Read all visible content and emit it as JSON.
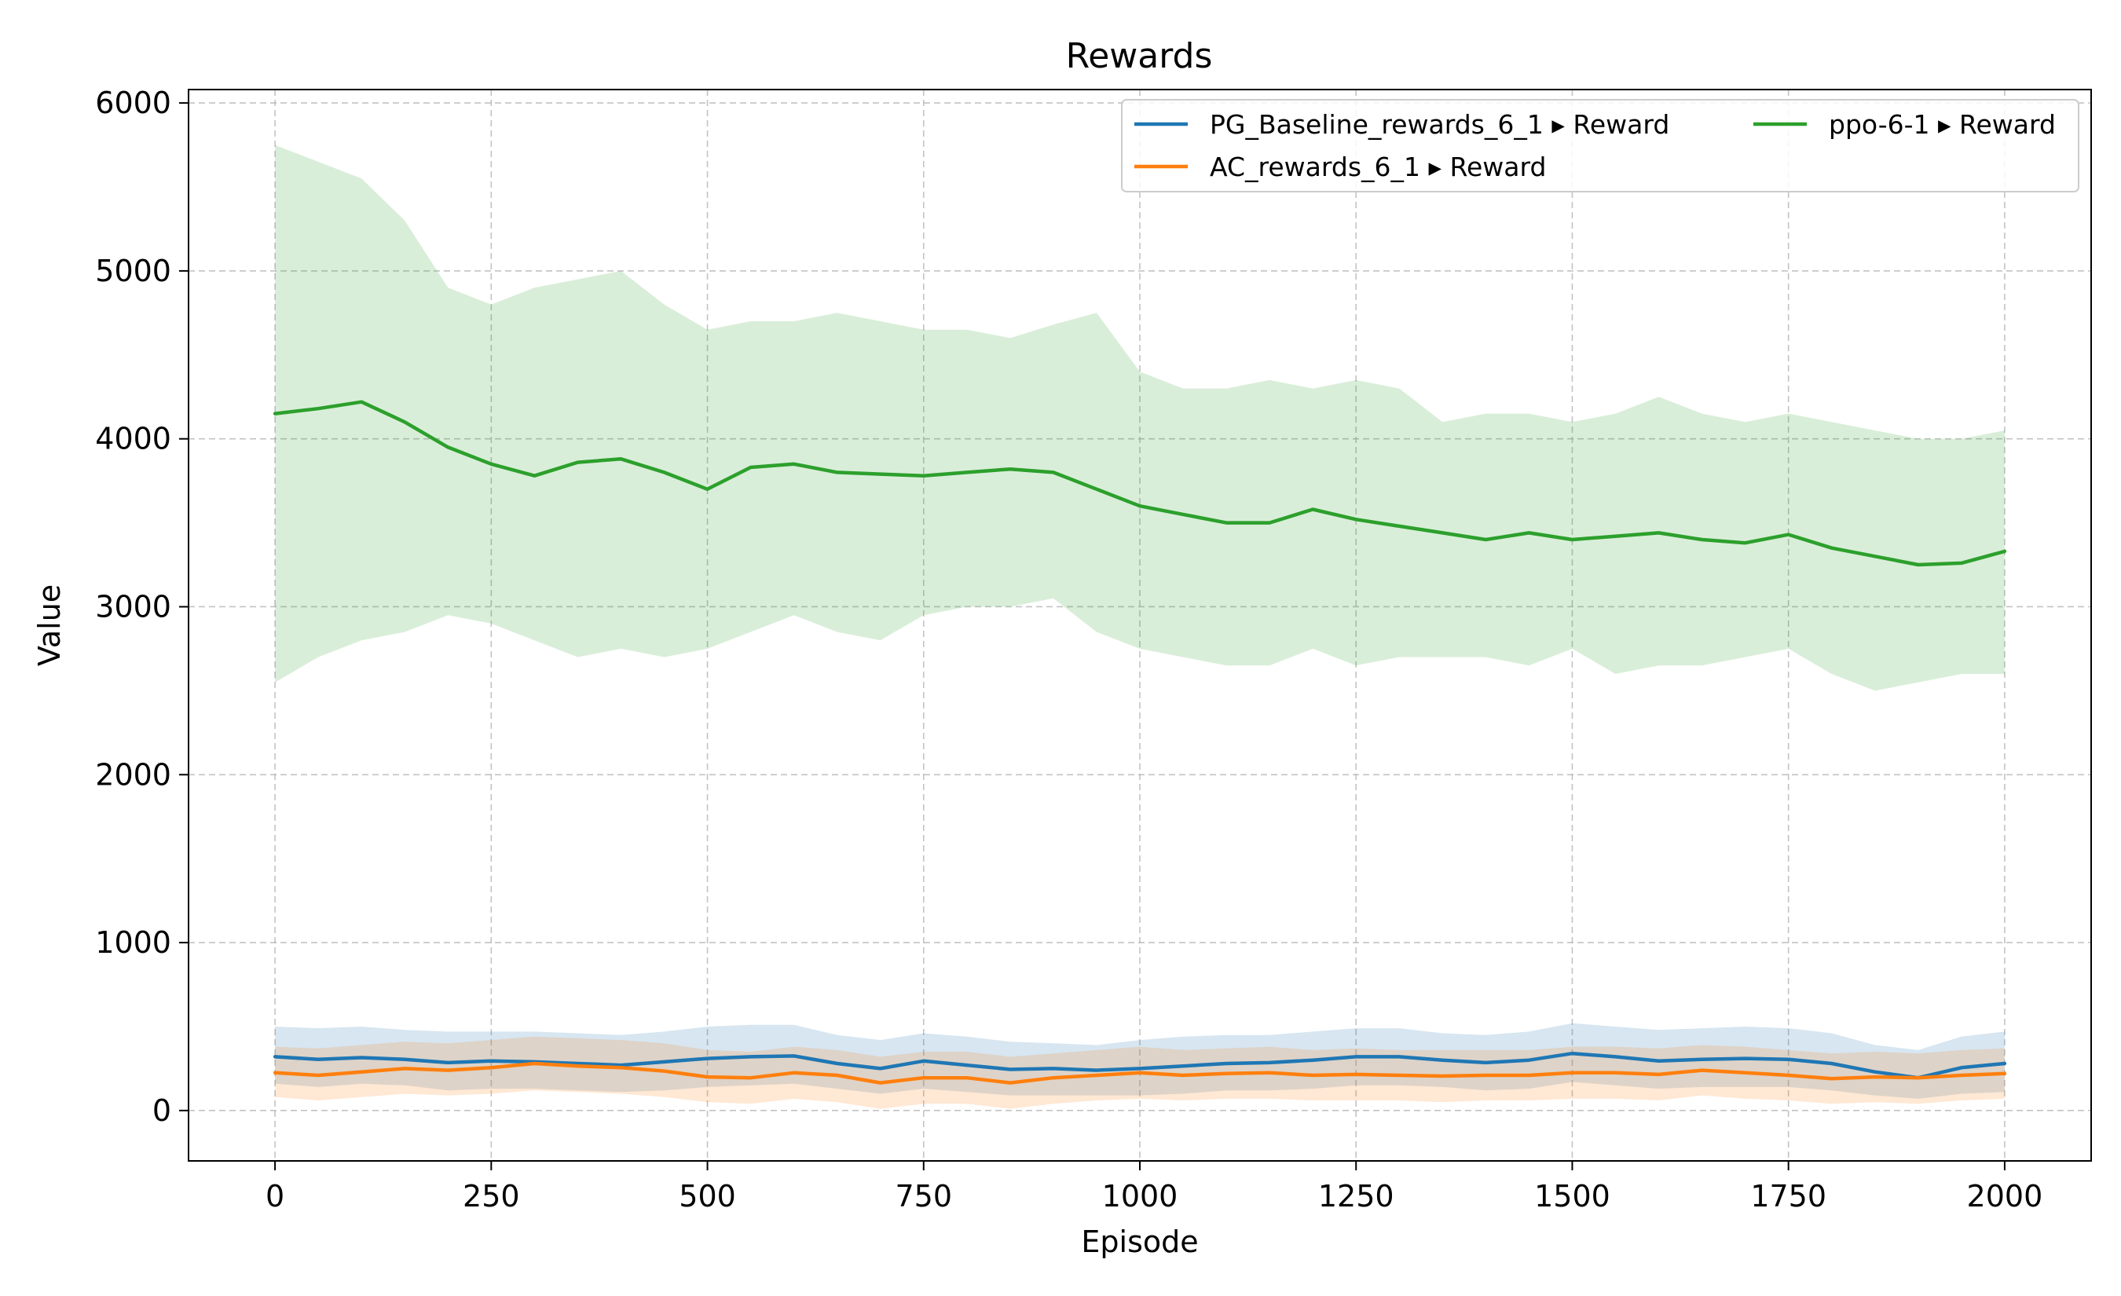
{
  "colors": {
    "pg": "#1f77b4",
    "ac": "#ff7f0e",
    "ppo": "#2ca02c"
  },
  "chart_data": {
    "type": "line",
    "title": "Rewards",
    "xlabel": "Episode",
    "ylabel": "Value",
    "xlim": [
      -100,
      2100
    ],
    "ylim": [
      -300,
      6080
    ],
    "xticks": [
      0,
      250,
      500,
      750,
      1000,
      1250,
      1500,
      1750,
      2000
    ],
    "yticks": [
      0,
      1000,
      2000,
      3000,
      4000,
      5000,
      6000
    ],
    "grid": true,
    "legend": {
      "placement": "top-right",
      "columns": 2
    },
    "series": [
      {
        "name": "PG_Baseline_rewards_6_1 ▸ Reward",
        "color_key": "pg",
        "x": [
          0,
          50,
          100,
          150,
          200,
          250,
          300,
          350,
          400,
          450,
          500,
          550,
          600,
          650,
          700,
          750,
          800,
          850,
          900,
          950,
          1000,
          1050,
          1100,
          1150,
          1200,
          1250,
          1300,
          1350,
          1400,
          1450,
          1500,
          1550,
          1600,
          1650,
          1700,
          1750,
          1800,
          1850,
          1900,
          1950,
          2000
        ],
        "mean": [
          320,
          305,
          315,
          305,
          285,
          295,
          290,
          280,
          270,
          290,
          310,
          320,
          325,
          280,
          250,
          295,
          270,
          245,
          250,
          240,
          250,
          265,
          280,
          285,
          300,
          320,
          320,
          300,
          285,
          300,
          340,
          320,
          295,
          305,
          310,
          305,
          280,
          230,
          195,
          255,
          280
        ],
        "upper": [
          500,
          490,
          500,
          480,
          470,
          470,
          470,
          460,
          450,
          470,
          500,
          510,
          510,
          450,
          420,
          460,
          440,
          410,
          400,
          390,
          420,
          440,
          450,
          450,
          470,
          490,
          490,
          460,
          450,
          470,
          520,
          500,
          480,
          490,
          500,
          490,
          460,
          390,
          360,
          440,
          470
        ],
        "lower": [
          160,
          140,
          160,
          150,
          120,
          130,
          130,
          120,
          110,
          120,
          140,
          150,
          160,
          130,
          100,
          130,
          110,
          90,
          90,
          90,
          90,
          100,
          120,
          120,
          130,
          150,
          150,
          140,
          120,
          130,
          170,
          150,
          130,
          140,
          140,
          140,
          120,
          90,
          70,
          100,
          110
        ]
      },
      {
        "name": "AC_rewards_6_1 ▸ Reward",
        "color_key": "ac",
        "x": [
          0,
          50,
          100,
          150,
          200,
          250,
          300,
          350,
          400,
          450,
          500,
          550,
          600,
          650,
          700,
          750,
          800,
          850,
          900,
          950,
          1000,
          1050,
          1100,
          1150,
          1200,
          1250,
          1300,
          1350,
          1400,
          1450,
          1500,
          1550,
          1600,
          1650,
          1700,
          1750,
          1800,
          1850,
          1900,
          1950,
          2000
        ],
        "mean": [
          225,
          210,
          230,
          250,
          240,
          255,
          280,
          265,
          255,
          235,
          200,
          195,
          225,
          210,
          165,
          195,
          195,
          165,
          195,
          210,
          225,
          210,
          220,
          225,
          210,
          215,
          210,
          205,
          210,
          210,
          225,
          225,
          215,
          240,
          225,
          210,
          190,
          200,
          195,
          210,
          220
        ],
        "upper": [
          380,
          370,
          390,
          410,
          400,
          420,
          440,
          430,
          420,
          400,
          360,
          350,
          380,
          360,
          320,
          350,
          350,
          320,
          340,
          360,
          380,
          360,
          370,
          380,
          360,
          370,
          360,
          360,
          360,
          360,
          380,
          380,
          370,
          390,
          380,
          360,
          340,
          350,
          340,
          360,
          370
        ],
        "lower": [
          80,
          60,
          80,
          100,
          90,
          100,
          120,
          110,
          100,
          80,
          50,
          40,
          70,
          50,
          10,
          40,
          40,
          10,
          40,
          60,
          70,
          60,
          70,
          70,
          60,
          60,
          60,
          50,
          60,
          60,
          70,
          70,
          60,
          90,
          70,
          60,
          40,
          50,
          40,
          60,
          70
        ]
      },
      {
        "name": "ppo-6-1 ▸ Reward",
        "color_key": "ppo",
        "x": [
          0,
          50,
          100,
          150,
          200,
          250,
          300,
          350,
          400,
          450,
          500,
          550,
          600,
          650,
          700,
          750,
          800,
          850,
          900,
          950,
          1000,
          1050,
          1100,
          1150,
          1200,
          1250,
          1300,
          1350,
          1400,
          1450,
          1500,
          1550,
          1600,
          1650,
          1700,
          1750,
          1800,
          1850,
          1900,
          1950,
          2000
        ],
        "mean": [
          4150,
          4180,
          4220,
          4100,
          3950,
          3850,
          3780,
          3860,
          3880,
          3800,
          3700,
          3830,
          3850,
          3800,
          3790,
          3780,
          3800,
          3820,
          3800,
          3700,
          3600,
          3550,
          3500,
          3500,
          3580,
          3520,
          3480,
          3440,
          3400,
          3440,
          3400,
          3420,
          3440,
          3400,
          3380,
          3430,
          3350,
          3300,
          3250,
          3260,
          3330
        ],
        "upper": [
          5750,
          5650,
          5550,
          5300,
          4900,
          4800,
          4900,
          4950,
          5000,
          4800,
          4650,
          4700,
          4700,
          4750,
          4700,
          4650,
          4650,
          4600,
          4680,
          4750,
          4400,
          4300,
          4300,
          4350,
          4300,
          4350,
          4300,
          4100,
          4150,
          4150,
          4100,
          4150,
          4250,
          4150,
          4100,
          4150,
          4100,
          4050,
          4000,
          4000,
          4050
        ],
        "lower": [
          2550,
          2700,
          2800,
          2850,
          2950,
          2900,
          2800,
          2700,
          2750,
          2700,
          2750,
          2850,
          2950,
          2850,
          2800,
          2950,
          3000,
          3000,
          3050,
          2850,
          2750,
          2700,
          2650,
          2650,
          2750,
          2650,
          2700,
          2700,
          2700,
          2650,
          2750,
          2600,
          2650,
          2650,
          2700,
          2750,
          2600,
          2500,
          2550,
          2600,
          2600
        ]
      }
    ]
  }
}
